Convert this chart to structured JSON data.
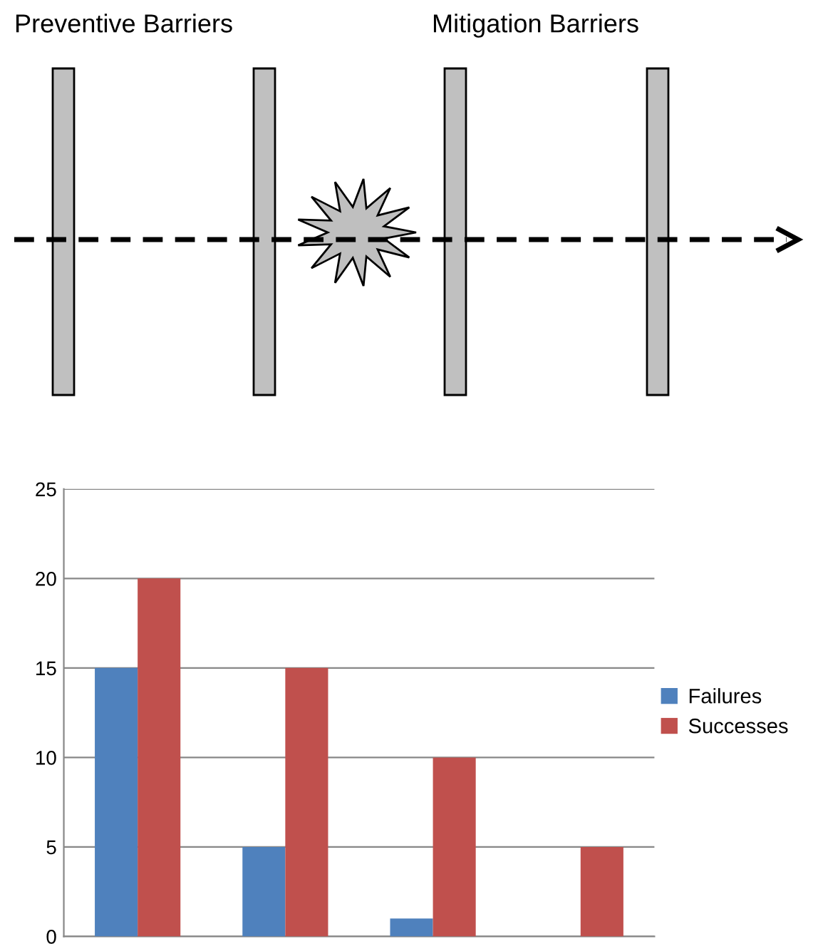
{
  "chart_data": {
    "type": "bar",
    "categories": [
      null,
      null,
      null,
      null
    ],
    "series": [
      {
        "name": "Failures",
        "color": "#4f81bd",
        "values": [
          15,
          5,
          1,
          0
        ]
      },
      {
        "name": "Successes",
        "color": "#c0504d",
        "values": [
          20,
          15,
          10,
          5
        ]
      }
    ],
    "ylim": [
      0,
      25
    ],
    "yticks": [
      0,
      5,
      10,
      15,
      20,
      25
    ],
    "grid": "y",
    "legend": "right",
    "annotations": [
      "Preventive Barriers",
      "Mitigation Barriers"
    ]
  }
}
